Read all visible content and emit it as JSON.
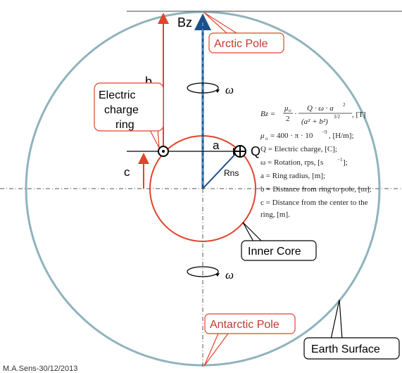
{
  "labels": {
    "bz": "Bz",
    "b": "b",
    "a": "a",
    "c": "c",
    "q": "Q",
    "rns": "Rns",
    "omega_top": "ω",
    "omega_bottom": "ω"
  },
  "callouts": {
    "arctic_pole": "Arctic Pole",
    "electric_charge_ring": [
      "Electric",
      "charge",
      "ring"
    ],
    "inner_core": "Inner Core",
    "antarctic_pole": "Antarctic Pole",
    "earth_surface": "Earth Surface"
  },
  "equations": {
    "bz_lhs": "Bz =",
    "mu0_sub": "μ",
    "q_numer": "Q · ω · a",
    "denom": "(a² + b²)",
    "exp": "3/2",
    "unit_bz": ", [T]",
    "mu0_line": "= 400 · π · 10",
    "mu0_exp": "−9",
    "mu0_unit": ", [H/m];",
    "q_def": "Q = Electric charge, [C];",
    "omega_def": "ω = Rotation, rps, [s",
    "omega_exp": "−1",
    "omega_end": "];",
    "a_def": "a = Ring radius, [m];",
    "b_def": "b = Distance from ring to pole, [m];",
    "c_def_1": "c = Distance from the center to the",
    "c_def_2": "ring, [m]."
  },
  "footer": {
    "credit": "M.A.Sens-30/12/2013"
  },
  "colors": {
    "earth_circle": "#8fb3bd",
    "core_circle": "#e0442c",
    "bz_arrow": "#1f4e8c",
    "bz_dash": "#4a9fd9",
    "measure_red": "#e0442c",
    "callout_border": "#e0442c",
    "callout_text": "#c0392b"
  }
}
